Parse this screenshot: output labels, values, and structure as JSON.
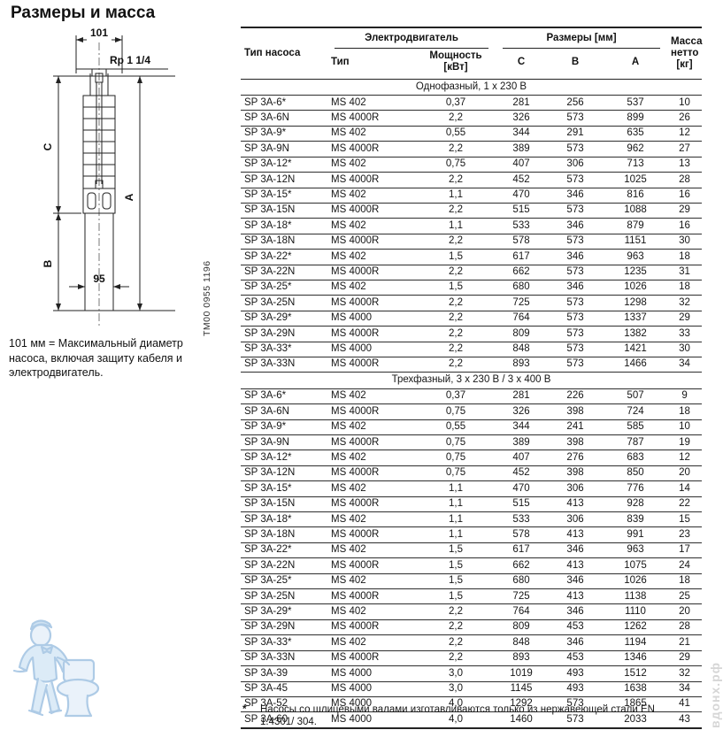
{
  "page_title": "Размеры и масса",
  "drawing": {
    "dim_width": "101",
    "thread_label": "Rp 1 1/4",
    "dim_c": "C",
    "dim_b": "B",
    "dim_a": "A",
    "dim_motor_width": "95",
    "code": "TM00 0955 1196",
    "caption": "101 мм = Максимальный диаметр насоса, включая защиту кабеля и электродвигатель."
  },
  "table": {
    "col_pump": "Тип насоса",
    "group_motor": "Электродвигатель",
    "group_dims": "Размеры [мм]",
    "col_motor_type": "Тип",
    "col_power": "Мощность\n[кВт]",
    "col_c": "C",
    "col_b": "B",
    "col_a": "A",
    "col_mass": "Масса\nнетто\n[кг]",
    "sections": [
      {
        "label": "Однофазный, 1 x 230 В",
        "rows": [
          [
            "SP 3A-6*",
            "MS 402",
            "0,37",
            "281",
            "256",
            "537",
            "10"
          ],
          [
            "SP 3A-6N",
            "MS 4000R",
            "2,2",
            "326",
            "573",
            "899",
            "26"
          ],
          [
            "SP 3A-9*",
            "MS 402",
            "0,55",
            "344",
            "291",
            "635",
            "12"
          ],
          [
            "SP 3A-9N",
            "MS 4000R",
            "2,2",
            "389",
            "573",
            "962",
            "27"
          ],
          [
            "SP 3A-12*",
            "MS 402",
            "0,75",
            "407",
            "306",
            "713",
            "13"
          ],
          [
            "SP 3A-12N",
            "MS 4000R",
            "2,2",
            "452",
            "573",
            "1025",
            "28"
          ],
          [
            "SP 3A-15*",
            "MS 402",
            "1,1",
            "470",
            "346",
            "816",
            "16"
          ],
          [
            "SP 3A-15N",
            "MS 4000R",
            "2,2",
            "515",
            "573",
            "1088",
            "29"
          ],
          [
            "SP 3A-18*",
            "MS 402",
            "1,1",
            "533",
            "346",
            "879",
            "16"
          ],
          [
            "SP 3A-18N",
            "MS 4000R",
            "2,2",
            "578",
            "573",
            "1151",
            "30"
          ],
          [
            "SP 3A-22*",
            "MS 402",
            "1,5",
            "617",
            "346",
            "963",
            "18"
          ],
          [
            "SP 3A-22N",
            "MS 4000R",
            "2,2",
            "662",
            "573",
            "1235",
            "31"
          ],
          [
            "SP 3A-25*",
            "MS 402",
            "1,5",
            "680",
            "346",
            "1026",
            "18"
          ],
          [
            "SP 3A-25N",
            "MS 4000R",
            "2,2",
            "725",
            "573",
            "1298",
            "32"
          ],
          [
            "SP 3A-29*",
            "MS 4000",
            "2,2",
            "764",
            "573",
            "1337",
            "29"
          ],
          [
            "SP 3A-29N",
            "MS 4000R",
            "2,2",
            "809",
            "573",
            "1382",
            "33"
          ],
          [
            "SP 3A-33*",
            "MS 4000",
            "2,2",
            "848",
            "573",
            "1421",
            "30"
          ],
          [
            "SP 3A-33N",
            "MS 4000R",
            "2,2",
            "893",
            "573",
            "1466",
            "34"
          ]
        ]
      },
      {
        "label": "Трехфазный, 3 x 230 В / 3 x 400 В",
        "rows": [
          [
            "SP 3A-6*",
            "MS 402",
            "0,37",
            "281",
            "226",
            "507",
            "9"
          ],
          [
            "SP 3A-6N",
            "MS 4000R",
            "0,75",
            "326",
            "398",
            "724",
            "18"
          ],
          [
            "SP 3A-9*",
            "MS 402",
            "0,55",
            "344",
            "241",
            "585",
            "10"
          ],
          [
            "SP 3A-9N",
            "MS 4000R",
            "0,75",
            "389",
            "398",
            "787",
            "19"
          ],
          [
            "SP 3A-12*",
            "MS 402",
            "0,75",
            "407",
            "276",
            "683",
            "12"
          ],
          [
            "SP 3A-12N",
            "MS 4000R",
            "0,75",
            "452",
            "398",
            "850",
            "20"
          ],
          [
            "SP 3A-15*",
            "MS 402",
            "1,1",
            "470",
            "306",
            "776",
            "14"
          ],
          [
            "SP 3A-15N",
            "MS 4000R",
            "1,1",
            "515",
            "413",
            "928",
            "22"
          ],
          [
            "SP 3A-18*",
            "MS 402",
            "1,1",
            "533",
            "306",
            "839",
            "15"
          ],
          [
            "SP 3A-18N",
            "MS 4000R",
            "1,1",
            "578",
            "413",
            "991",
            "23"
          ],
          [
            "SP 3A-22*",
            "MS 402",
            "1,5",
            "617",
            "346",
            "963",
            "17"
          ],
          [
            "SP 3A-22N",
            "MS 4000R",
            "1,5",
            "662",
            "413",
            "1075",
            "24"
          ],
          [
            "SP 3A-25*",
            "MS 402",
            "1,5",
            "680",
            "346",
            "1026",
            "18"
          ],
          [
            "SP 3A-25N",
            "MS 4000R",
            "1,5",
            "725",
            "413",
            "1138",
            "25"
          ],
          [
            "SP 3A-29*",
            "MS 402",
            "2,2",
            "764",
            "346",
            "1110",
            "20"
          ],
          [
            "SP 3A-29N",
            "MS 4000R",
            "2,2",
            "809",
            "453",
            "1262",
            "28"
          ],
          [
            "SP 3A-33*",
            "MS 402",
            "2,2",
            "848",
            "346",
            "1194",
            "21"
          ],
          [
            "SP 3A-33N",
            "MS 4000R",
            "2,2",
            "893",
            "453",
            "1346",
            "29"
          ],
          [
            "SP 3A-39",
            "MS 4000",
            "3,0",
            "1019",
            "493",
            "1512",
            "32"
          ],
          [
            "SP 3A-45",
            "MS 4000",
            "3,0",
            "1145",
            "493",
            "1638",
            "34"
          ],
          [
            "SP 3A-52",
            "MS 4000",
            "4,0",
            "1292",
            "573",
            "1865",
            "41"
          ],
          [
            "SP 3A-60",
            "MS 4000",
            "4,0",
            "1460",
            "573",
            "2033",
            "43"
          ]
        ]
      }
    ]
  },
  "footnote": {
    "marker": "*",
    "text": "Насосы со шлицевыми валами изготавливаются только из нержавеющей стали EN 1.4301/ 304."
  },
  "watermark": {
    "text": "вдонх.рф"
  }
}
